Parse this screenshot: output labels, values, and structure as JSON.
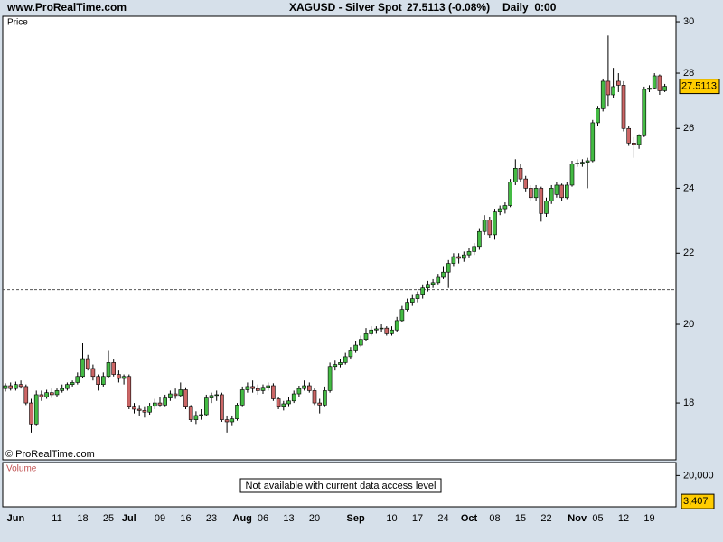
{
  "header": {
    "site": "www.ProRealTime.com",
    "instrument": "XAGUSD - Silver Spot",
    "last": "27.5113 (-0.08%)",
    "timeframe": "Daily  0:00"
  },
  "chart_data": {
    "type": "candlestick",
    "panel_label": "Price",
    "copyright": "© ProRealTime.com",
    "log_scale": true,
    "ylim": [
      16.7,
      30.22
    ],
    "yticks": [
      18,
      20,
      22,
      24,
      26,
      28,
      30
    ],
    "reference_line": 20.95,
    "price_tag": "27.5113",
    "up_color": "#44bb44",
    "down_color": "#cc6666",
    "categories": [
      null,
      null,
      "Jun",
      null,
      null,
      null,
      null,
      null,
      null,
      null,
      "11",
      null,
      null,
      null,
      null,
      "18",
      null,
      null,
      null,
      null,
      "25",
      null,
      null,
      null,
      "Jul",
      null,
      null,
      null,
      null,
      null,
      "09",
      null,
      null,
      null,
      null,
      "16",
      null,
      null,
      null,
      null,
      "23",
      null,
      null,
      null,
      null,
      null,
      "Aug",
      null,
      null,
      null,
      "06",
      null,
      null,
      null,
      null,
      "13",
      null,
      null,
      null,
      null,
      "20",
      null,
      null,
      null,
      null,
      null,
      null,
      null,
      "Sep",
      null,
      null,
      null,
      null,
      null,
      null,
      "10",
      null,
      null,
      null,
      null,
      "17",
      null,
      null,
      null,
      null,
      "24",
      null,
      null,
      null,
      null,
      "Oct",
      null,
      null,
      null,
      null,
      "08",
      null,
      null,
      null,
      null,
      "15",
      null,
      null,
      null,
      null,
      "22",
      null,
      null,
      null,
      null,
      null,
      "Nov",
      null,
      null,
      null,
      "05",
      null,
      null,
      null,
      null,
      "12",
      null,
      null,
      null,
      null,
      "19",
      null,
      null,
      null
    ],
    "ohlc": [
      [
        18.35,
        18.48,
        18.28,
        18.42
      ],
      [
        18.42,
        18.5,
        18.3,
        18.35
      ],
      [
        18.35,
        18.52,
        18.3,
        18.45
      ],
      [
        18.45,
        18.55,
        18.35,
        18.4
      ],
      [
        18.4,
        18.45,
        17.95,
        18.0
      ],
      [
        18.0,
        18.1,
        17.3,
        17.5
      ],
      [
        17.5,
        18.3,
        17.45,
        18.2
      ],
      [
        18.2,
        18.3,
        18.05,
        18.15
      ],
      [
        18.15,
        18.32,
        18.1,
        18.25
      ],
      [
        18.25,
        18.35,
        18.12,
        18.2
      ],
      [
        18.2,
        18.35,
        18.15,
        18.3
      ],
      [
        18.3,
        18.45,
        18.25,
        18.35
      ],
      [
        18.35,
        18.5,
        18.3,
        18.45
      ],
      [
        18.45,
        18.55,
        18.4,
        18.5
      ],
      [
        18.5,
        18.75,
        18.45,
        18.65
      ],
      [
        18.65,
        19.5,
        18.6,
        19.1
      ],
      [
        19.1,
        19.2,
        18.8,
        18.85
      ],
      [
        18.85,
        18.95,
        18.55,
        18.65
      ],
      [
        18.65,
        18.7,
        18.3,
        18.45
      ],
      [
        18.45,
        18.75,
        18.4,
        18.65
      ],
      [
        18.65,
        19.3,
        18.6,
        19.0
      ],
      [
        19.0,
        19.1,
        18.65,
        18.7
      ],
      [
        18.7,
        18.8,
        18.5,
        18.6
      ],
      [
        18.6,
        18.7,
        18.45,
        18.65
      ],
      [
        18.65,
        18.7,
        17.85,
        17.9
      ],
      [
        17.9,
        18.0,
        17.75,
        17.85
      ],
      [
        17.85,
        17.95,
        17.7,
        17.82
      ],
      [
        17.82,
        17.9,
        17.65,
        17.78
      ],
      [
        17.78,
        18.0,
        17.72,
        17.92
      ],
      [
        17.92,
        18.1,
        17.85,
        18.0
      ],
      [
        18.0,
        18.15,
        17.9,
        17.95
      ],
      [
        17.95,
        18.2,
        17.9,
        18.12
      ],
      [
        18.12,
        18.3,
        18.05,
        18.22
      ],
      [
        18.22,
        18.35,
        18.1,
        18.18
      ],
      [
        18.18,
        18.5,
        18.15,
        18.32
      ],
      [
        18.32,
        18.38,
        17.85,
        17.9
      ],
      [
        17.9,
        17.95,
        17.55,
        17.6
      ],
      [
        17.6,
        17.8,
        17.5,
        17.7
      ],
      [
        17.7,
        17.85,
        17.6,
        17.72
      ],
      [
        17.72,
        18.2,
        17.68,
        18.12
      ],
      [
        18.12,
        18.25,
        18.0,
        18.18
      ],
      [
        18.18,
        18.3,
        18.05,
        18.2
      ],
      [
        18.2,
        18.25,
        17.55,
        17.6
      ],
      [
        17.6,
        17.7,
        17.3,
        17.55
      ],
      [
        17.55,
        17.7,
        17.45,
        17.62
      ],
      [
        17.62,
        18.0,
        17.58,
        17.95
      ],
      [
        17.95,
        18.4,
        17.9,
        18.32
      ],
      [
        18.32,
        18.5,
        18.25,
        18.4
      ],
      [
        18.4,
        18.55,
        18.25,
        18.35
      ],
      [
        18.35,
        18.45,
        18.2,
        18.3
      ],
      [
        18.3,
        18.45,
        18.22,
        18.38
      ],
      [
        18.38,
        18.5,
        18.3,
        18.42
      ],
      [
        18.42,
        18.48,
        18.05,
        18.1
      ],
      [
        18.1,
        18.15,
        17.85,
        17.9
      ],
      [
        17.9,
        18.05,
        17.82,
        17.98
      ],
      [
        17.98,
        18.15,
        17.9,
        18.05
      ],
      [
        18.05,
        18.3,
        18.0,
        18.22
      ],
      [
        18.22,
        18.42,
        18.15,
        18.35
      ],
      [
        18.35,
        18.55,
        18.3,
        18.42
      ],
      [
        18.42,
        18.5,
        18.25,
        18.3
      ],
      [
        18.3,
        18.35,
        17.95,
        18.0
      ],
      [
        18.0,
        18.1,
        17.75,
        17.95
      ],
      [
        17.95,
        18.4,
        17.9,
        18.3
      ],
      [
        18.3,
        19.0,
        18.25,
        18.9
      ],
      [
        18.9,
        19.05,
        18.8,
        18.95
      ],
      [
        18.95,
        19.1,
        18.88,
        19.0
      ],
      [
        19.0,
        19.25,
        18.95,
        19.15
      ],
      [
        19.15,
        19.4,
        19.1,
        19.3
      ],
      [
        19.3,
        19.55,
        19.25,
        19.45
      ],
      [
        19.45,
        19.7,
        19.4,
        19.6
      ],
      [
        19.6,
        19.9,
        19.55,
        19.75
      ],
      [
        19.75,
        19.95,
        19.7,
        19.85
      ],
      [
        19.85,
        19.95,
        19.75,
        19.88
      ],
      [
        19.88,
        20.0,
        19.8,
        19.9
      ],
      [
        19.9,
        19.95,
        19.7,
        19.75
      ],
      [
        19.75,
        19.95,
        19.7,
        19.85
      ],
      [
        19.85,
        20.2,
        19.8,
        20.1
      ],
      [
        20.1,
        20.5,
        20.05,
        20.4
      ],
      [
        20.4,
        20.7,
        20.35,
        20.6
      ],
      [
        20.6,
        20.8,
        20.5,
        20.7
      ],
      [
        20.7,
        20.9,
        20.6,
        20.8
      ],
      [
        20.8,
        21.1,
        20.7,
        21.0
      ],
      [
        21.0,
        21.2,
        20.9,
        21.1
      ],
      [
        21.1,
        21.25,
        21.0,
        21.15
      ],
      [
        21.15,
        21.4,
        21.1,
        21.3
      ],
      [
        21.3,
        21.6,
        21.25,
        21.45
      ],
      [
        21.45,
        21.8,
        21.0,
        21.7
      ],
      [
        21.7,
        22.0,
        21.6,
        21.9
      ],
      [
        21.9,
        22.0,
        21.7,
        21.85
      ],
      [
        21.85,
        22.05,
        21.75,
        21.95
      ],
      [
        21.95,
        22.15,
        21.85,
        22.05
      ],
      [
        22.05,
        22.3,
        21.95,
        22.2
      ],
      [
        22.2,
        22.75,
        22.1,
        22.65
      ],
      [
        22.65,
        23.15,
        22.55,
        23.0
      ],
      [
        23.0,
        23.1,
        22.45,
        22.55
      ],
      [
        22.55,
        23.35,
        22.4,
        23.25
      ],
      [
        23.25,
        23.45,
        23.15,
        23.35
      ],
      [
        23.35,
        23.55,
        23.2,
        23.45
      ],
      [
        23.45,
        24.3,
        23.4,
        24.2
      ],
      [
        24.2,
        24.95,
        24.1,
        24.65
      ],
      [
        24.65,
        24.8,
        24.2,
        24.3
      ],
      [
        24.3,
        24.4,
        23.9,
        24.0
      ],
      [
        24.0,
        24.1,
        23.6,
        23.7
      ],
      [
        23.7,
        24.1,
        23.6,
        24.0
      ],
      [
        24.0,
        24.05,
        22.95,
        23.2
      ],
      [
        23.2,
        23.7,
        23.1,
        23.6
      ],
      [
        23.6,
        24.1,
        23.5,
        24.0
      ],
      [
        23.8,
        24.2,
        23.7,
        24.1
      ],
      [
        24.1,
        24.15,
        23.6,
        23.7
      ],
      [
        23.7,
        24.2,
        23.65,
        24.1
      ],
      [
        24.1,
        24.9,
        24.05,
        24.8
      ],
      [
        24.8,
        24.95,
        24.7,
        24.82
      ],
      [
        24.82,
        24.95,
        24.7,
        24.85
      ],
      [
        24.85,
        25.0,
        24.0,
        24.9
      ],
      [
        24.9,
        26.3,
        24.85,
        26.2
      ],
      [
        26.2,
        26.8,
        26.1,
        26.7
      ],
      [
        26.7,
        27.8,
        26.6,
        27.7
      ],
      [
        27.7,
        29.45,
        26.8,
        27.2
      ],
      [
        27.2,
        28.2,
        27.1,
        27.5
      ],
      [
        27.7,
        28.0,
        27.3,
        27.55
      ],
      [
        27.55,
        27.7,
        25.9,
        26.0
      ],
      [
        26.0,
        26.1,
        25.4,
        25.5
      ],
      [
        25.5,
        25.7,
        25.0,
        25.45
      ],
      [
        25.45,
        25.8,
        25.3,
        25.75
      ],
      [
        25.75,
        27.5,
        25.7,
        27.4
      ],
      [
        27.4,
        27.55,
        27.3,
        27.45
      ],
      [
        27.45,
        28.0,
        27.4,
        27.9
      ],
      [
        27.9,
        27.95,
        27.2,
        27.35
      ],
      [
        27.35,
        27.6,
        27.3,
        27.5113
      ]
    ],
    "volume": {
      "panel_label": "Volume",
      "note": "Not available with current data access level",
      "ylim": [
        0,
        28300
      ],
      "yticks": [
        {
          "value": 20000,
          "label": "20,000"
        }
      ],
      "last": {
        "value": 3407,
        "label": "3,407"
      }
    }
  }
}
